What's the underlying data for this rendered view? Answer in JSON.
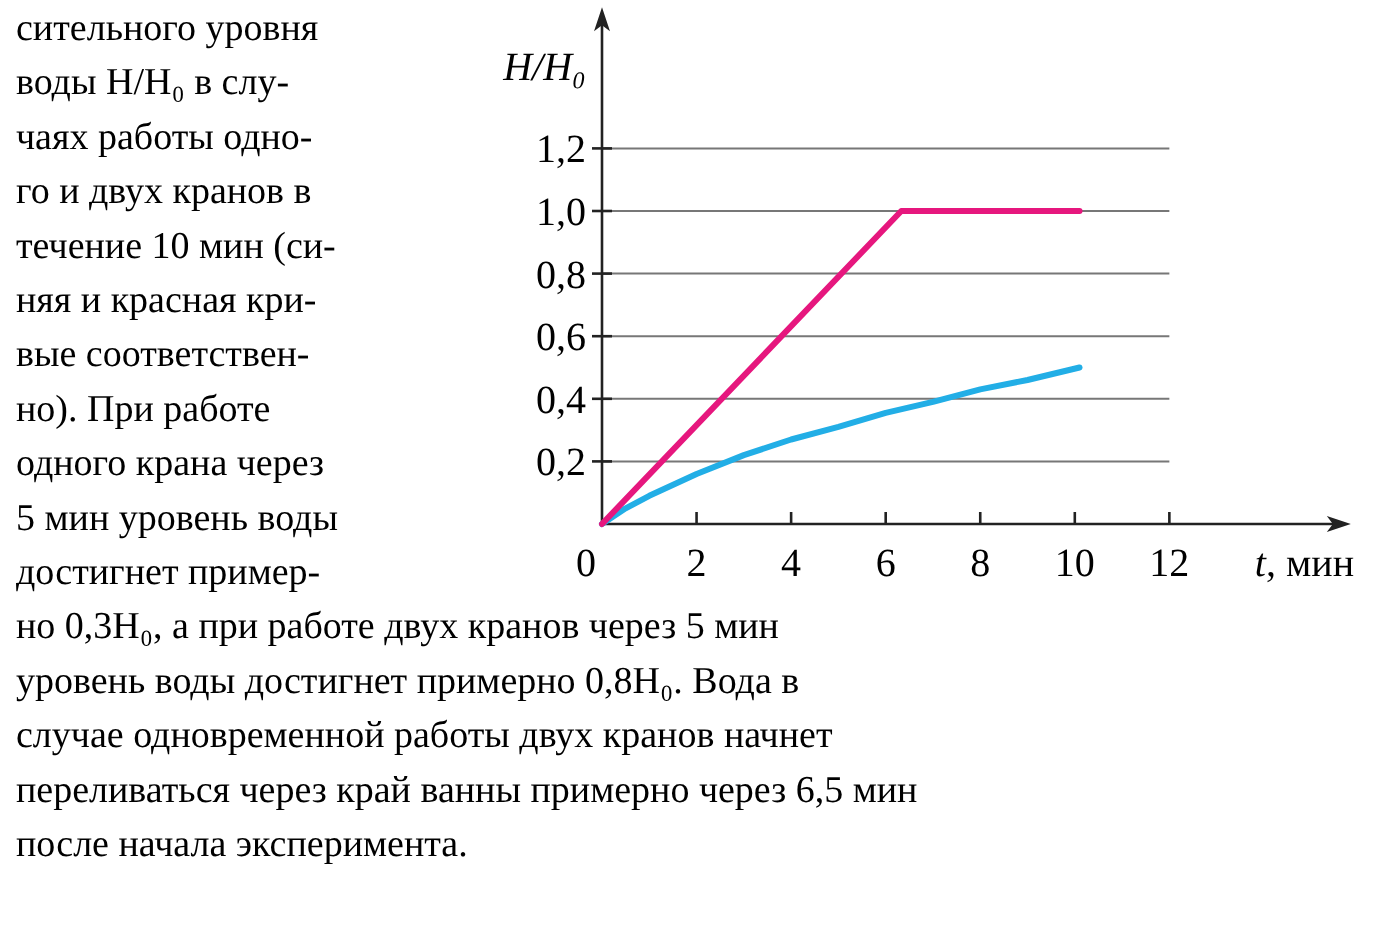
{
  "chart_data": {
    "type": "line",
    "xlabel": "t, мин",
    "ylabel": "H/H₀",
    "xlim": [
      0,
      15.5
    ],
    "ylim": [
      0,
      1.6
    ],
    "xticks": [
      0,
      2,
      4,
      6,
      8,
      10,
      12
    ],
    "yticks": [
      {
        "value": 0.2,
        "label": "0,2"
      },
      {
        "value": 0.4,
        "label": "0,4"
      },
      {
        "value": 0.6,
        "label": "0,6"
      },
      {
        "value": 0.8,
        "label": "0,8"
      },
      {
        "value": 1.0,
        "label": "1,0"
      },
      {
        "value": 1.2,
        "label": "1,2"
      }
    ],
    "grid": "y",
    "line_style": "solid",
    "marker": "none",
    "series": [
      {
        "color": "#22aee6",
        "x": [
          0,
          0.5,
          1,
          2,
          3,
          4,
          5,
          6,
          7,
          8,
          9,
          10.1
        ],
        "values": [
          0,
          0.05,
          0.09,
          0.16,
          0.22,
          0.27,
          0.31,
          0.355,
          0.39,
          0.43,
          0.46,
          0.5
        ]
      },
      {
        "color": "#e6177e",
        "x": [
          0,
          6.33,
          10.1
        ],
        "values": [
          0,
          1.0,
          1.0
        ]
      }
    ],
    "annotations": [
      "сительного уровня",
      "воды H/H₀ в слу-",
      "чаях работы одно-",
      "го и двух кранов в",
      "течение 10 мин (си-",
      "няя и красная кри-",
      "вые соответствен-",
      "но). При работе",
      "одного крана через",
      "5 мин уровень воды",
      "достигнет пример-",
      "но 0,3H₀, а при работе двух кранов через 5 мин",
      "уровень воды достигнет примерно 0,8H₀. Вода в",
      "случае одновременной работы двух кранов начнет",
      "переливаться через край ванны примерно через 6,5 мин",
      "после начала эксперимента."
    ]
  }
}
